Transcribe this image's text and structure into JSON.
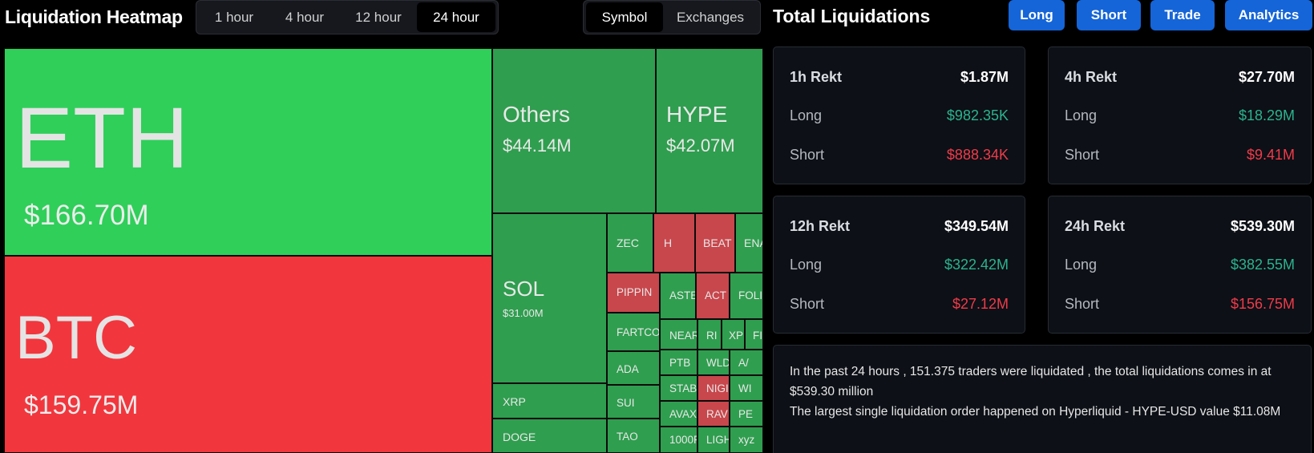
{
  "heatmap": {
    "title": "Liquidation Heatmap",
    "time_tabs": [
      "1 hour",
      "4 hour",
      "12 hour",
      "24 hour"
    ],
    "active_time_tab": "24 hour",
    "view_tabs": [
      "Symbol",
      "Exchanges"
    ],
    "active_view_tab": "Symbol",
    "colors": {
      "long_dominant": "#2fcf5a",
      "long_dominant_dim": "#2f9e4f",
      "short_dominant": "#f2363d",
      "short_dominant_dim": "#c8474c"
    },
    "tiles": {
      "eth": {
        "symbol": "ETH",
        "value": "$166.70M"
      },
      "btc": {
        "symbol": "BTC",
        "value": "$159.75M"
      },
      "others": {
        "symbol": "Others",
        "value": "$44.14M"
      },
      "hype": {
        "symbol": "HYPE",
        "value": "$42.07M"
      },
      "sol": {
        "symbol": "SOL",
        "value": "$31.00M"
      },
      "xrp": {
        "symbol": "XRP"
      },
      "doge": {
        "symbol": "DOGE"
      },
      "zec": {
        "symbol": "ZEC"
      },
      "h": {
        "symbol": "H"
      },
      "beat": {
        "symbol": "BEAT"
      },
      "ena": {
        "symbol": "ENA"
      },
      "pippin": {
        "symbol": "PIPPIN"
      },
      "aster": {
        "symbol": "ASTE"
      },
      "act": {
        "symbol": "ACT"
      },
      "foli": {
        "symbol": "FOLI"
      },
      "fartco": {
        "symbol": "FARTCO"
      },
      "near": {
        "symbol": "NEAR"
      },
      "ri": {
        "symbol": "RI"
      },
      "xp": {
        "symbol": "XP"
      },
      "fi": {
        "symbol": "FI"
      },
      "ada": {
        "symbol": "ADA"
      },
      "ptb": {
        "symbol": "PTB"
      },
      "wld": {
        "symbol": "WLD"
      },
      "aa": {
        "symbol": "A/"
      },
      "sui": {
        "symbol": "SUI"
      },
      "stab": {
        "symbol": "STAB"
      },
      "nigh": {
        "symbol": "NIGI"
      },
      "wi": {
        "symbol": "WI"
      },
      "tao": {
        "symbol": "TAO"
      },
      "avax": {
        "symbol": "AVAX"
      },
      "rave": {
        "symbol": "RAVI"
      },
      "pe": {
        "symbol": "PE"
      },
      "k1000": {
        "symbol": "1000F"
      },
      "ligh": {
        "symbol": "LIGH"
      },
      "xyz": {
        "symbol": "xyz"
      }
    }
  },
  "panel": {
    "title": "Total Liquidations",
    "buttons": [
      "Long",
      "Short",
      "Trade",
      "Analytics"
    ],
    "cards": [
      {
        "heading": "1h Rekt",
        "total": "$1.87M",
        "long_label": "Long",
        "long": "$982.35K",
        "short_label": "Short",
        "short": "$888.34K"
      },
      {
        "heading": "4h Rekt",
        "total": "$27.70M",
        "long_label": "Long",
        "long": "$18.29M",
        "short_label": "Short",
        "short": "$9.41M"
      },
      {
        "heading": "12h Rekt",
        "total": "$349.54M",
        "long_label": "Long",
        "long": "$322.42M",
        "short_label": "Short",
        "short": "$27.12M"
      },
      {
        "heading": "24h Rekt",
        "total": "$539.30M",
        "long_label": "Long",
        "long": "$382.55M",
        "short_label": "Short",
        "short": "$156.75M"
      }
    ],
    "summary_line1": "In the past 24 hours , 151.375 traders were liquidated , the total liquidations comes in at $539.30 million",
    "summary_line2": "The largest single liquidation order happened on Hyperliquid - HYPE-USD value $11.08M"
  }
}
